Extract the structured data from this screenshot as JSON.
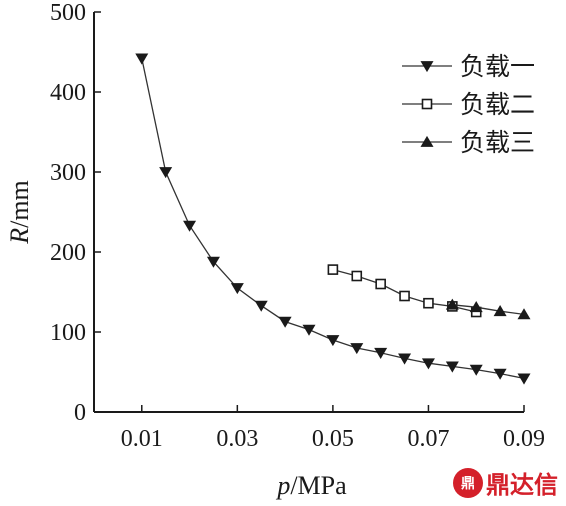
{
  "chart_data": {
    "type": "line",
    "xlabel_italic": "p",
    "xlabel_unit": "/MPa",
    "ylabel_italic": "R",
    "ylabel_unit": "/mm",
    "xlim": [
      0.0,
      0.09
    ],
    "ylim": [
      0,
      500
    ],
    "x_ticks": [
      "0.01",
      "0.03",
      "0.05",
      "0.07",
      "0.09"
    ],
    "y_ticks": [
      "0",
      "100",
      "200",
      "300",
      "400",
      "500"
    ],
    "grid": false,
    "legend_position": "top-right",
    "series": [
      {
        "name": "负载一",
        "marker": "triangle-down",
        "x": [
          0.01,
          0.015,
          0.02,
          0.025,
          0.03,
          0.035,
          0.04,
          0.045,
          0.05,
          0.055,
          0.06,
          0.065,
          0.07,
          0.075,
          0.08,
          0.085,
          0.09
        ],
        "y": [
          442,
          300,
          233,
          188,
          155,
          133,
          113,
          103,
          90,
          80,
          74,
          67,
          61,
          57,
          53,
          48,
          42
        ]
      },
      {
        "name": "负载二",
        "marker": "square-open",
        "x": [
          0.05,
          0.055,
          0.06,
          0.065,
          0.07,
          0.075,
          0.08
        ],
        "y": [
          178,
          170,
          160,
          145,
          136,
          132,
          125
        ]
      },
      {
        "name": "负载三",
        "marker": "triangle-up",
        "x": [
          0.075,
          0.08,
          0.085,
          0.09
        ],
        "y": [
          134,
          131,
          126,
          122
        ]
      }
    ]
  },
  "watermark": {
    "logo": "鼎",
    "text": "鼎达信"
  }
}
